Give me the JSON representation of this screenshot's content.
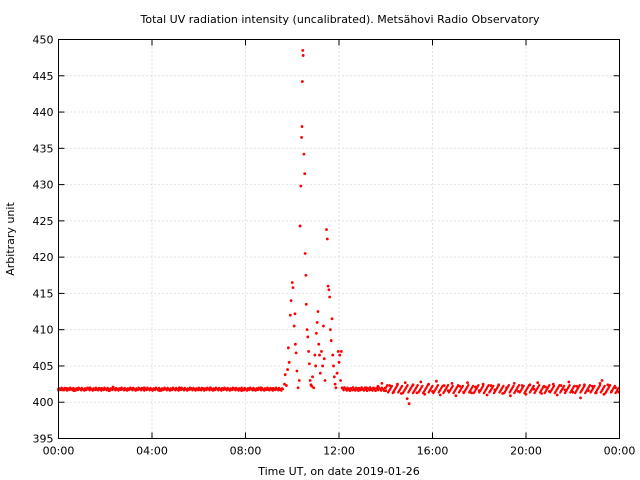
{
  "chart_data": {
    "type": "scatter",
    "title": "Total UV radiation intensity (uncalibrated). Metsähovi Radio Observatory",
    "xlabel": "Time UT, on date 2019-01-26",
    "ylabel": "Arbitrary unit",
    "xlim": [
      "00:00",
      "24:00"
    ],
    "ylim": [
      395,
      450
    ],
    "x_ticks": [
      "00:00",
      "04:00",
      "08:00",
      "12:00",
      "16:00",
      "20:00",
      "00:00"
    ],
    "y_ticks": [
      "395",
      "400",
      "405",
      "410",
      "415",
      "420",
      "425",
      "430",
      "435",
      "440",
      "445",
      "450"
    ],
    "grid": true,
    "marker_color": "#ff0000",
    "series": [
      {
        "points": [
          [
            "00:00",
            401.8
          ],
          [
            "00:10",
            401.7
          ],
          [
            "00:20",
            401.9
          ],
          [
            "00:30",
            401.8
          ],
          [
            "00:40",
            401.6
          ],
          [
            "00:50",
            401.9
          ],
          [
            "01:00",
            401.8
          ],
          [
            "01:10",
            401.7
          ],
          [
            "01:20",
            402.0
          ],
          [
            "01:30",
            401.8
          ],
          [
            "01:40",
            401.7
          ],
          [
            "01:50",
            401.9
          ],
          [
            "02:00",
            401.8
          ],
          [
            "02:10",
            401.6
          ],
          [
            "02:20",
            402.1
          ],
          [
            "02:30",
            401.8
          ],
          [
            "02:40",
            401.9
          ],
          [
            "02:50",
            401.7
          ],
          [
            "03:00",
            401.8
          ],
          [
            "03:10",
            401.9
          ],
          [
            "03:20",
            401.7
          ],
          [
            "03:30",
            401.8
          ],
          [
            "03:40",
            402.0
          ],
          [
            "03:50",
            401.8
          ],
          [
            "04:00",
            401.7
          ],
          [
            "04:10",
            401.9
          ],
          [
            "04:20",
            401.6
          ],
          [
            "04:30",
            401.8
          ],
          [
            "04:40",
            401.9
          ],
          [
            "04:50",
            401.7
          ],
          [
            "05:00",
            401.8
          ],
          [
            "05:10",
            402.0
          ],
          [
            "05:20",
            401.8
          ],
          [
            "05:30",
            401.7
          ],
          [
            "05:40",
            401.9
          ],
          [
            "05:50",
            401.8
          ],
          [
            "06:00",
            401.7
          ],
          [
            "06:10",
            401.9
          ],
          [
            "06:20",
            401.8
          ],
          [
            "06:30",
            402.0
          ],
          [
            "06:40",
            401.7
          ],
          [
            "06:50",
            401.8
          ],
          [
            "07:00",
            401.9
          ],
          [
            "07:10",
            401.8
          ],
          [
            "07:20",
            401.7
          ],
          [
            "07:30",
            401.9
          ],
          [
            "07:40",
            401.8
          ],
          [
            "07:50",
            401.6
          ],
          [
            "08:00",
            401.8
          ],
          [
            "08:10",
            401.9
          ],
          [
            "08:20",
            401.7
          ],
          [
            "08:30",
            401.8
          ],
          [
            "08:40",
            402.0
          ],
          [
            "08:50",
            401.8
          ],
          [
            "09:00",
            401.7
          ],
          [
            "09:10",
            401.9
          ],
          [
            "09:20",
            401.8
          ],
          [
            "09:30",
            401.7
          ],
          [
            "09:40",
            402.5
          ],
          [
            "09:42",
            403.8
          ],
          [
            "09:45",
            402.3
          ],
          [
            "09:48",
            404.5
          ],
          [
            "09:50",
            407.5
          ],
          [
            "09:52",
            405.5
          ],
          [
            "09:55",
            412.0
          ],
          [
            "09:57",
            414.0
          ],
          [
            "10:00",
            416.5
          ],
          [
            "10:02",
            415.8
          ],
          [
            "10:05",
            410.5
          ],
          [
            "10:07",
            412.2
          ],
          [
            "10:08",
            408.0
          ],
          [
            "10:10",
            406.8
          ],
          [
            "10:12",
            404.3
          ],
          [
            "10:15",
            402.0
          ],
          [
            "10:18",
            403.0
          ],
          [
            "10:20",
            424.3
          ],
          [
            "10:22",
            429.8
          ],
          [
            "10:24",
            436.5
          ],
          [
            "10:25",
            438.0
          ],
          [
            "10:26",
            444.2
          ],
          [
            "10:27",
            448.5
          ],
          [
            "10:28",
            447.8
          ],
          [
            "10:30",
            434.2
          ],
          [
            "10:32",
            431.5
          ],
          [
            "10:33",
            420.5
          ],
          [
            "10:35",
            417.5
          ],
          [
            "10:36",
            413.5
          ],
          [
            "10:38",
            410.0
          ],
          [
            "10:40",
            409.0
          ],
          [
            "10:42",
            407.0
          ],
          [
            "10:44",
            405.3
          ],
          [
            "10:46",
            403.0
          ],
          [
            "10:48",
            402.4
          ],
          [
            "10:50",
            402.2
          ],
          [
            "10:52",
            403.5
          ],
          [
            "10:55",
            402.0
          ],
          [
            "10:58",
            406.5
          ],
          [
            "11:00",
            405.0
          ],
          [
            "11:02",
            409.5
          ],
          [
            "11:04",
            411.0
          ],
          [
            "11:06",
            412.5
          ],
          [
            "11:08",
            408.0
          ],
          [
            "11:10",
            406.5
          ],
          [
            "11:12",
            404.0
          ],
          [
            "11:15",
            407.0
          ],
          [
            "11:18",
            405.0
          ],
          [
            "11:20",
            410.5
          ],
          [
            "11:22",
            406.0
          ],
          [
            "11:24",
            403.0
          ],
          [
            "11:28",
            423.8
          ],
          [
            "11:30",
            422.5
          ],
          [
            "11:32",
            416.0
          ],
          [
            "11:34",
            415.5
          ],
          [
            "11:36",
            414.5
          ],
          [
            "11:38",
            410.0
          ],
          [
            "11:40",
            408.5
          ],
          [
            "11:42",
            411.5
          ],
          [
            "11:44",
            406.5
          ],
          [
            "11:46",
            405.0
          ],
          [
            "11:48",
            403.5
          ],
          [
            "11:50",
            402.5
          ],
          [
            "11:52",
            402.0
          ],
          [
            "11:55",
            404.0
          ],
          [
            "11:58",
            407.0
          ],
          [
            "12:00",
            405.5
          ],
          [
            "12:02",
            406.5
          ],
          [
            "12:04",
            403.0
          ],
          [
            "12:06",
            407.0
          ],
          [
            "12:08",
            402.0
          ],
          [
            "12:12",
            401.9
          ],
          [
            "12:20",
            401.8
          ],
          [
            "12:30",
            401.9
          ],
          [
            "12:40",
            401.7
          ],
          [
            "12:50",
            401.9
          ],
          [
            "13:00",
            401.8
          ],
          [
            "13:10",
            402.0
          ],
          [
            "13:20",
            401.7
          ],
          [
            "13:30",
            401.9
          ],
          [
            "13:40",
            402.2
          ],
          [
            "13:50",
            402.6
          ],
          [
            "14:00",
            401.6
          ],
          [
            "14:10",
            402.3
          ],
          [
            "14:20",
            401.4
          ],
          [
            "14:30",
            402.5
          ],
          [
            "14:40",
            401.2
          ],
          [
            "14:50",
            402.7
          ],
          [
            "14:55",
            400.5
          ],
          [
            "15:00",
            399.8
          ],
          [
            "15:10",
            402.4
          ],
          [
            "15:20",
            401.3
          ],
          [
            "15:30",
            402.8
          ],
          [
            "15:40",
            401.1
          ],
          [
            "15:50",
            402.5
          ],
          [
            "16:00",
            401.5
          ],
          [
            "16:10",
            402.9
          ],
          [
            "16:20",
            401.0
          ],
          [
            "16:30",
            402.3
          ],
          [
            "16:40",
            401.6
          ],
          [
            "16:50",
            402.6
          ],
          [
            "17:00",
            400.9
          ],
          [
            "17:10",
            402.2
          ],
          [
            "17:20",
            401.4
          ],
          [
            "17:30",
            402.7
          ],
          [
            "17:40",
            401.3
          ],
          [
            "17:50",
            402.1
          ],
          [
            "18:00",
            401.6
          ],
          [
            "18:10",
            402.5
          ],
          [
            "18:20",
            401.0
          ],
          [
            "18:30",
            402.3
          ],
          [
            "18:40",
            401.7
          ],
          [
            "18:50",
            402.4
          ],
          [
            "19:00",
            401.2
          ],
          [
            "19:10",
            402.0
          ],
          [
            "19:20",
            400.9
          ],
          [
            "19:30",
            402.6
          ],
          [
            "19:40",
            401.5
          ],
          [
            "19:50",
            402.3
          ],
          [
            "20:00",
            401.1
          ],
          [
            "20:10",
            402.4
          ],
          [
            "20:20",
            401.8
          ],
          [
            "20:30",
            402.7
          ],
          [
            "20:40",
            401.2
          ],
          [
            "20:50",
            402.1
          ],
          [
            "21:00",
            401.5
          ],
          [
            "21:10",
            402.5
          ],
          [
            "21:20",
            401.0
          ],
          [
            "21:30",
            402.3
          ],
          [
            "21:40",
            401.7
          ],
          [
            "21:50",
            402.8
          ],
          [
            "22:00",
            401.4
          ],
          [
            "22:10",
            402.2
          ],
          [
            "22:20",
            400.6
          ],
          [
            "22:30",
            402.4
          ],
          [
            "22:40",
            401.6
          ],
          [
            "22:50",
            402.2
          ],
          [
            "23:00",
            401.3
          ],
          [
            "23:10",
            402.6
          ],
          [
            "23:15",
            403.0
          ],
          [
            "23:20",
            401.1
          ],
          [
            "23:30",
            402.4
          ],
          [
            "23:40",
            401.5
          ],
          [
            "23:50",
            402.0
          ],
          [
            "23:58",
            401.4
          ]
        ]
      }
    ]
  }
}
